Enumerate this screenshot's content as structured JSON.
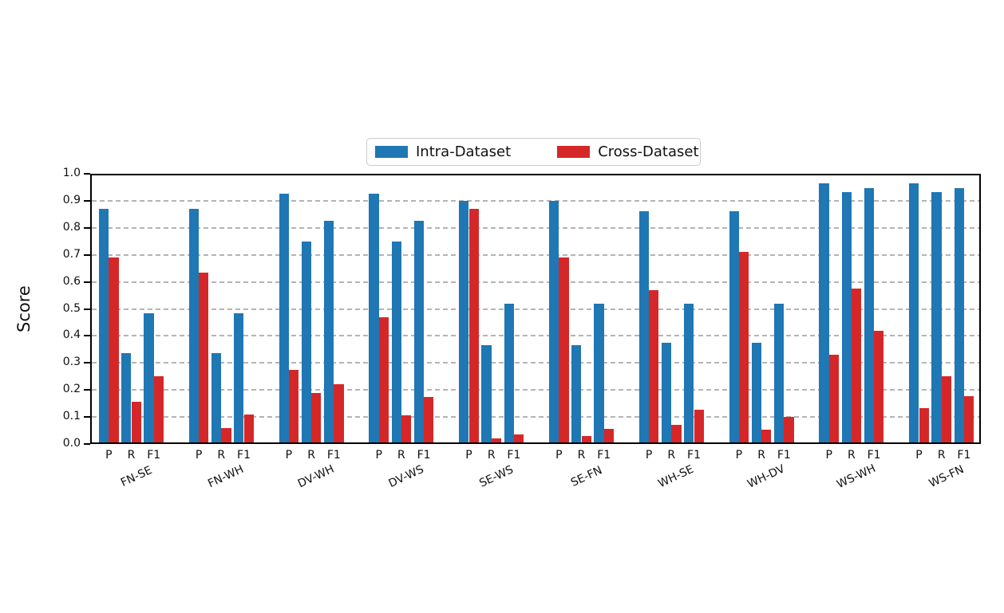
{
  "legend": {
    "items": [
      {
        "label": "Intra-Dataset",
        "color": "#1f77b4"
      },
      {
        "label": "Cross-Dataset",
        "color": "#d62728"
      }
    ]
  },
  "axes": {
    "ylabel": "Score",
    "yticks": [
      "1.0",
      "0.9",
      "0.8",
      "0.7",
      "0.6",
      "0.5",
      "0.4",
      "0.3",
      "0.2",
      "0.1",
      "0.0"
    ]
  },
  "colors": {
    "intra": "#1f77b4",
    "cross": "#d62728",
    "grid": "#b4b4b4",
    "spine": "#000000",
    "text": "#111111"
  },
  "chart_data": {
    "type": "bar",
    "title": "",
    "xlabel": "",
    "ylabel": "Score",
    "ylim": [
      0.0,
      1.0
    ],
    "ytick_step": 0.1,
    "grid": "horizontal dashed gridlines every 0.1",
    "legend_position": "top-center",
    "categories": [
      "FN-SE",
      "FN-WH",
      "DV-WH",
      "DV-WS",
      "SE-WS",
      "SE-FN",
      "WH-SE",
      "WH-DV",
      "WS-WH",
      "WS-FN"
    ],
    "metrics": [
      "P",
      "R",
      "F1"
    ],
    "series": [
      {
        "name": "Intra-Dataset",
        "color": "#1f77b4",
        "values": [
          [
            0.87,
            0.335,
            0.485
          ],
          [
            0.87,
            0.335,
            0.485
          ],
          [
            0.925,
            0.75,
            0.825
          ],
          [
            0.925,
            0.75,
            0.825
          ],
          [
            0.9,
            0.365,
            0.52
          ],
          [
            0.9,
            0.365,
            0.52
          ],
          [
            0.86,
            0.375,
            0.52
          ],
          [
            0.86,
            0.375,
            0.52
          ],
          [
            0.965,
            0.932,
            0.947
          ],
          [
            0.965,
            0.932,
            0.947
          ]
        ]
      },
      {
        "name": "Cross-Dataset",
        "color": "#d62728",
        "values": [
          [
            0.69,
            0.155,
            0.25
          ],
          [
            0.635,
            0.06,
            0.11
          ],
          [
            0.275,
            0.19,
            0.22
          ],
          [
            0.47,
            0.105,
            0.175
          ],
          [
            0.87,
            0.02,
            0.035
          ],
          [
            0.69,
            0.03,
            0.055
          ],
          [
            0.57,
            0.07,
            0.127
          ],
          [
            0.71,
            0.053,
            0.1
          ],
          [
            0.33,
            0.575,
            0.42
          ],
          [
            0.133,
            0.25,
            0.177
          ]
        ]
      }
    ]
  }
}
